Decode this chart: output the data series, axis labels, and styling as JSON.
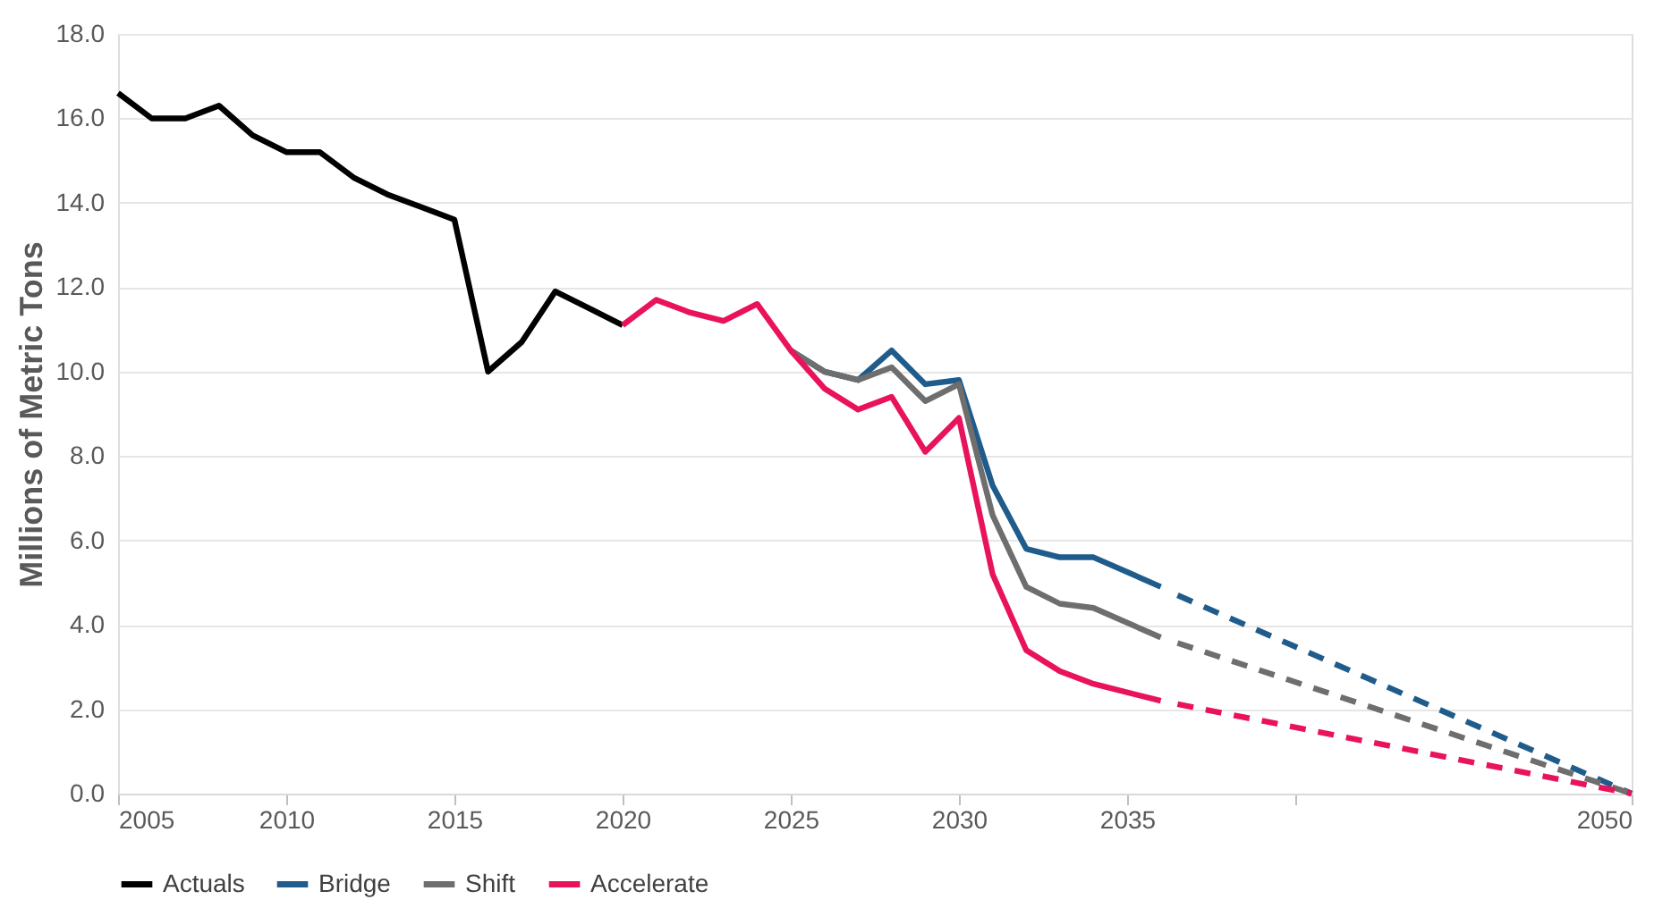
{
  "chart_data": {
    "type": "line",
    "ylabel": "Millions of Metric Tons",
    "x": [
      2005,
      2006,
      2007,
      2008,
      2009,
      2010,
      2011,
      2012,
      2013,
      2014,
      2015,
      2016,
      2017,
      2018,
      2019,
      2020
    ],
    "series": [
      {
        "name": "Actuals",
        "color": "#000000",
        "values": [
          16.6,
          16.0,
          16.0,
          16.3,
          15.6,
          15.2,
          15.2,
          14.6,
          14.2,
          13.9,
          13.6,
          10.0,
          10.7,
          11.9,
          11.5,
          11.1
        ]
      },
      {
        "name": "Bridge",
        "color": "#1f5c8b",
        "x": [
          2025,
          2026,
          2027,
          2028,
          2029,
          2030,
          2031,
          2032,
          2033,
          2034,
          2036
        ],
        "values": [
          10.5,
          10.0,
          9.8,
          10.5,
          9.7,
          9.8,
          7.3,
          5.8,
          5.6,
          5.6,
          4.9
        ]
      },
      {
        "name": "Shift",
        "color": "#6e6e6e",
        "x": [
          2025,
          2026,
          2027,
          2028,
          2029,
          2030,
          2031,
          2032,
          2033,
          2034,
          2036
        ],
        "values": [
          10.5,
          10.0,
          9.8,
          10.1,
          9.3,
          9.7,
          6.6,
          4.9,
          4.5,
          4.4,
          3.7
        ]
      },
      {
        "name": "Accelerate",
        "color": "#e8135c",
        "x": [
          2020,
          2021,
          2022,
          2023,
          2024,
          2025,
          2026,
          2027,
          2028,
          2029,
          2030,
          2031,
          2032,
          2033,
          2034,
          2036
        ],
        "values": [
          11.1,
          11.7,
          11.4,
          11.2,
          11.6,
          10.5,
          9.6,
          9.1,
          9.4,
          8.1,
          8.9,
          5.2,
          3.4,
          2.9,
          2.6,
          2.2
        ]
      },
      {
        "color": "#1f5c8b",
        "line_style": "dashed",
        "x": [
          2036.5,
          2050
        ],
        "values": [
          4.7,
          0
        ]
      },
      {
        "color": "#6e6e6e",
        "line_style": "dashed",
        "x": [
          2036.5,
          2050
        ],
        "values": [
          3.57,
          0
        ]
      },
      {
        "color": "#e8135c",
        "line_style": "dashed",
        "x": [
          2036.5,
          2050
        ],
        "values": [
          2.12,
          0
        ]
      }
    ],
    "xlim": [
      2005,
      2050
    ],
    "xticks": [
      2005,
      2010,
      2015,
      2020,
      2025,
      2030,
      2035,
      {
        "value": 2040,
        "label": null
      },
      2050
    ],
    "ylim": [
      0,
      18
    ],
    "yticks": [
      {
        "value": 0,
        "label": "0.0"
      },
      {
        "value": 2,
        "label": "2.0"
      },
      {
        "value": 4,
        "label": "4.0"
      },
      {
        "value": 6,
        "label": "6.0"
      },
      {
        "value": 8,
        "label": "8.0"
      },
      {
        "value": 10,
        "label": "10.0"
      },
      {
        "value": 12,
        "label": "12.0"
      },
      {
        "value": 14,
        "label": "14.0"
      },
      {
        "value": 16,
        "label": "16.0"
      },
      {
        "value": 18,
        "label": "18.0"
      }
    ],
    "grid": "y",
    "legend": "bottom",
    "line_style": "solid",
    "marker": "none"
  }
}
